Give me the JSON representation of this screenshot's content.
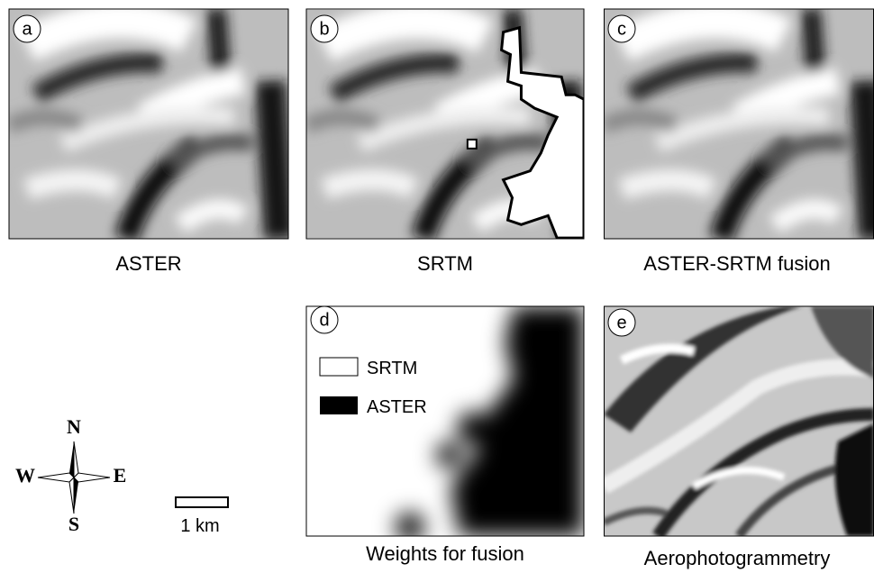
{
  "panels": [
    {
      "letter": "a",
      "caption": "ASTER"
    },
    {
      "letter": "b",
      "caption": "SRTM"
    },
    {
      "letter": "c",
      "caption": "ASTER-SRTM fusion"
    },
    {
      "letter": "d",
      "caption": "Weights for fusion",
      "legend": [
        "SRTM",
        "ASTER"
      ]
    },
    {
      "letter": "e",
      "caption": "Aerophotogrammetry"
    }
  ],
  "compass": {
    "north": "N",
    "south": "S",
    "east": "E",
    "west": "W"
  },
  "scale_bar": {
    "label": "1 km"
  }
}
